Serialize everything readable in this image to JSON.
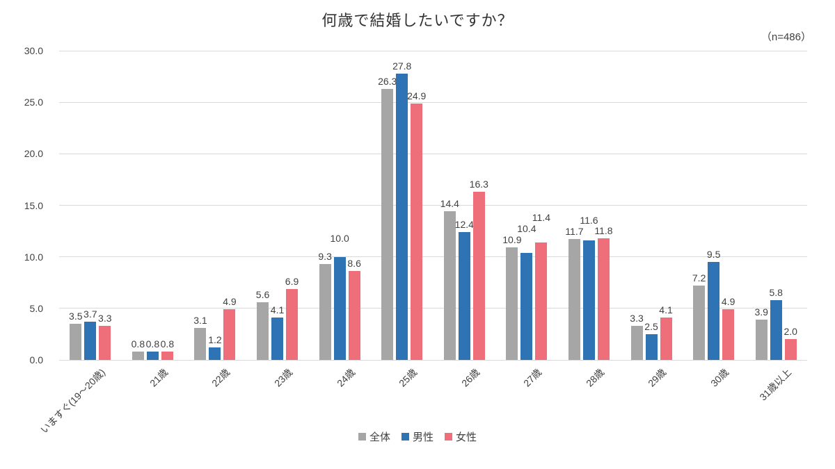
{
  "chart_data": {
    "type": "bar",
    "title": "何歳で結婚したいですか？",
    "annotation": "（n=486）",
    "categories": [
      "いますぐ(19～20歳)",
      "21歳",
      "22歳",
      "23歳",
      "24歳",
      "25歳",
      "26歳",
      "27歳",
      "28歳",
      "29歳",
      "30歳",
      "31歳以上"
    ],
    "series": [
      {
        "name": "全体",
        "color": "#a6a6a6",
        "values": [
          3.5,
          0.8,
          3.1,
          5.6,
          9.3,
          26.3,
          14.4,
          10.9,
          11.7,
          3.3,
          7.2,
          3.9
        ]
      },
      {
        "name": "男性",
        "color": "#2e74b5",
        "values": [
          3.7,
          0.8,
          1.2,
          4.1,
          10.0,
          27.8,
          12.4,
          10.4,
          11.6,
          2.5,
          9.5,
          5.8
        ]
      },
      {
        "name": "女性",
        "color": "#ee6e79",
        "values": [
          3.3,
          0.8,
          4.9,
          6.9,
          8.6,
          24.9,
          16.3,
          11.4,
          11.8,
          4.1,
          4.9,
          2.0
        ]
      }
    ],
    "ylim": [
      0,
      30
    ],
    "ytick_step": 5,
    "ytick_labels": [
      "0.0",
      "5.0",
      "10.0",
      "15.0",
      "20.0",
      "25.0",
      "30.0"
    ],
    "value_labels": true,
    "value_label_decimals": 1,
    "grid": true,
    "legend_position": "bottom",
    "colors": {
      "grid": "#d9d9d9",
      "axis_text": "#404040",
      "title_text": "#333333"
    }
  }
}
